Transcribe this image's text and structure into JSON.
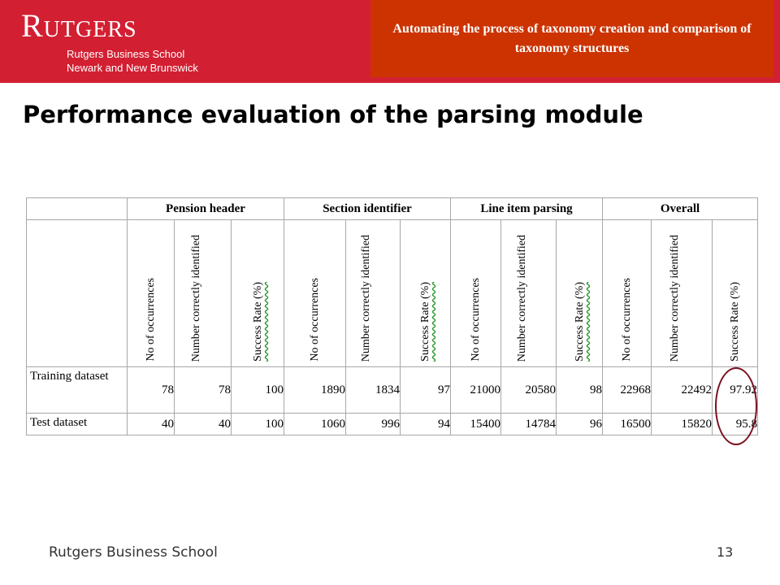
{
  "header": {
    "logo_word": "Rutgers",
    "logo_line1": "Rutgers Business School",
    "logo_line2": "Newark and New Brunswick",
    "presentation_title": "Automating the process of taxonomy creation and comparison of taxonomy structures"
  },
  "slide": {
    "title": "Performance evaluation of the parsing module"
  },
  "table": {
    "groups": [
      "Pension header",
      "Section identifier",
      "Line item parsing",
      "Overall"
    ],
    "subheaders": [
      "No of occurrences",
      "Number correctly identified",
      "Success Rate (%)"
    ],
    "rows": [
      {
        "label": "Training dataset",
        "values": [
          "78",
          "78",
          "100",
          "1890",
          "1834",
          "97",
          "21000",
          "20580",
          "98",
          "22968",
          "22492",
          "97.92"
        ]
      },
      {
        "label": "Test dataset",
        "values": [
          "40",
          "40",
          "100",
          "1060",
          "996",
          "94",
          "15400",
          "14784",
          "96",
          "16500",
          "15820",
          "95.8"
        ]
      }
    ]
  },
  "footer": {
    "text": "Rutgers Business School",
    "page_number": "13"
  },
  "colors": {
    "banner": "#d31f32",
    "title_box": "#cc3300",
    "highlight_circle": "#7a1020"
  }
}
